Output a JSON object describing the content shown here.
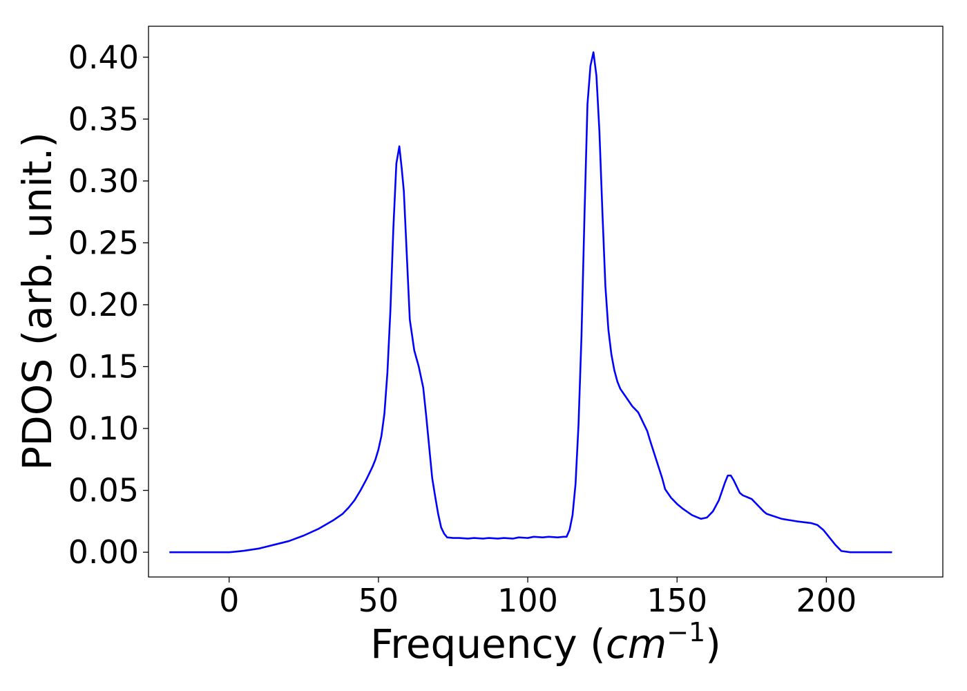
{
  "chart_data": {
    "type": "line",
    "title": "",
    "xlabel": "Frequency (",
    "xlabel_math": "cm",
    "xlabel_sup": "−1",
    "xlabel_close": ")",
    "ylabel": "PDOS (arb. unit.)",
    "xlim": [
      -27,
      239
    ],
    "ylim": [
      -0.02,
      0.425
    ],
    "xticks": [
      0,
      50,
      100,
      150,
      200
    ],
    "xtick_labels": [
      "0",
      "50",
      "100",
      "150",
      "200"
    ],
    "yticks": [
      0.0,
      0.05,
      0.1,
      0.15,
      0.2,
      0.25,
      0.3,
      0.35,
      0.4
    ],
    "ytick_labels": [
      "0.00",
      "0.05",
      "0.10",
      "0.15",
      "0.20",
      "0.25",
      "0.30",
      "0.35",
      "0.40"
    ],
    "grid": false,
    "legend": "none",
    "series": [
      {
        "color": "#0000ff",
        "x": [
          -20,
          -10,
          0,
          2,
          5,
          10,
          15,
          20,
          25,
          30,
          35,
          38,
          40,
          42,
          44,
          46,
          48,
          49,
          50,
          51,
          52,
          53,
          54,
          55,
          56,
          57,
          57.8,
          58.5,
          59.5,
          60.5,
          62,
          63.5,
          65,
          66,
          67,
          68,
          69,
          70,
          71,
          72,
          73,
          75,
          77,
          80,
          82,
          85,
          87,
          90,
          92,
          95,
          97,
          100,
          102,
          105,
          107,
          110,
          112,
          113,
          114,
          115,
          116,
          117,
          118,
          119,
          120,
          121,
          122,
          123,
          124,
          125,
          126,
          127,
          128,
          129,
          130,
          131,
          133,
          135,
          137,
          138,
          140,
          141,
          143,
          145,
          146,
          148,
          150,
          152,
          155,
          157,
          158,
          160,
          162,
          164,
          165,
          166,
          167,
          168,
          169,
          170,
          171,
          172,
          173,
          174,
          175,
          177,
          179,
          180,
          185,
          190,
          195,
          197,
          199,
          201,
          203,
          205,
          208,
          215,
          222
        ],
        "y": [
          0.0,
          0.0,
          0.0,
          0.0004,
          0.0012,
          0.003,
          0.006,
          0.009,
          0.0135,
          0.019,
          0.026,
          0.031,
          0.036,
          0.042,
          0.05,
          0.059,
          0.069,
          0.075,
          0.083,
          0.094,
          0.112,
          0.145,
          0.195,
          0.262,
          0.314,
          0.328,
          0.31,
          0.292,
          0.24,
          0.188,
          0.163,
          0.15,
          0.133,
          0.11,
          0.085,
          0.06,
          0.045,
          0.031,
          0.02,
          0.015,
          0.012,
          0.0115,
          0.0115,
          0.011,
          0.0115,
          0.011,
          0.0115,
          0.011,
          0.0115,
          0.011,
          0.012,
          0.0115,
          0.0125,
          0.012,
          0.0125,
          0.012,
          0.0125,
          0.0125,
          0.018,
          0.03,
          0.055,
          0.103,
          0.175,
          0.272,
          0.362,
          0.393,
          0.404,
          0.385,
          0.34,
          0.275,
          0.215,
          0.18,
          0.16,
          0.147,
          0.138,
          0.132,
          0.125,
          0.118,
          0.113,
          0.108,
          0.098,
          0.09,
          0.075,
          0.06,
          0.051,
          0.044,
          0.039,
          0.035,
          0.03,
          0.028,
          0.027,
          0.028,
          0.033,
          0.042,
          0.049,
          0.056,
          0.062,
          0.062,
          0.058,
          0.053,
          0.048,
          0.046,
          0.045,
          0.044,
          0.043,
          0.038,
          0.033,
          0.031,
          0.027,
          0.025,
          0.0235,
          0.022,
          0.018,
          0.012,
          0.006,
          0.001,
          0.0,
          0.0,
          0.0
        ]
      }
    ]
  }
}
